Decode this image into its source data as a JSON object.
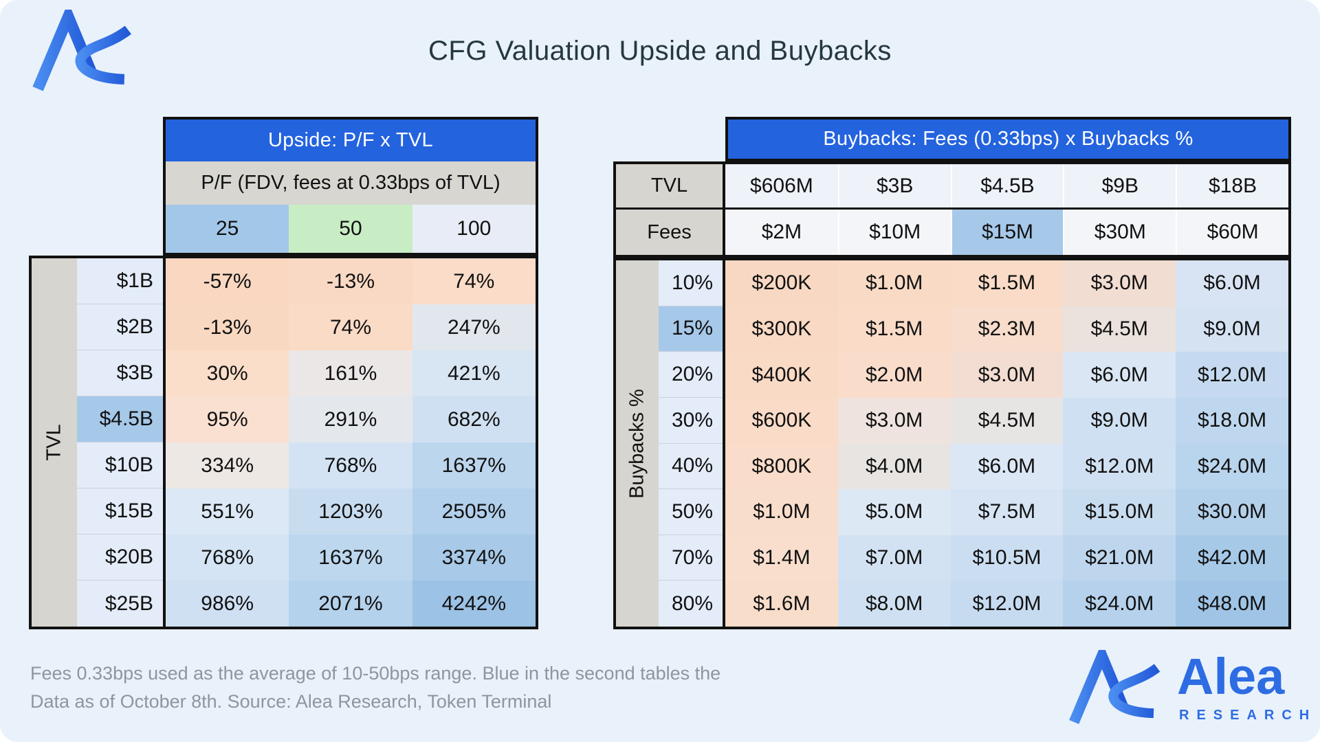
{
  "page": {
    "title": "CFG Valuation Upside and Buybacks",
    "background": "#e9f1fb",
    "footer_line1": "Fees 0.33bps used as the average of 10-50bps range. Blue in the second tables the",
    "footer_line2": "Data as of October 8th. Source: Alea Research, Token Terminal"
  },
  "branding": {
    "logo": "alea-logo",
    "wordmark": "Alea",
    "wordmark_sub": "RESEARCH",
    "brand_blue": "#2d6ce3"
  },
  "colors": {
    "header_blue": "#2463de",
    "highlight_blue": "#a6c8e9",
    "axis_gray": "#d6d5cf",
    "subtitle_gray": "#d7d6d1",
    "row_label_bg": "#e3ecf8",
    "border_black": "#111111",
    "title_color": "#25383d",
    "footer_gray": "#8e959e"
  },
  "chart_data": [
    {
      "type": "table",
      "title": "Upside: P/F x TVL",
      "subtitle": "P/F (FDV, fees at 0.33bps of TVL)",
      "row_axis": "TVL",
      "columns": [
        "25",
        "50",
        "100"
      ],
      "column_colors": [
        "#a3c7e9",
        "#c8edc5",
        "#e8ecf6"
      ],
      "row_labels": [
        "$1B",
        "$2B",
        "$3B",
        "$4.5B",
        "$10B",
        "$15B",
        "$20B",
        "$25B"
      ],
      "highlighted_row": "$4.5B",
      "cells": [
        [
          "-57%",
          "-13%",
          "74%"
        ],
        [
          "-13%",
          "74%",
          "247%"
        ],
        [
          "30%",
          "161%",
          "421%"
        ],
        [
          "95%",
          "291%",
          "682%"
        ],
        [
          "334%",
          "768%",
          "1637%"
        ],
        [
          "551%",
          "1203%",
          "2505%"
        ],
        [
          "768%",
          "1637%",
          "3374%"
        ],
        [
          "986%",
          "2071%",
          "4242%"
        ]
      ],
      "cell_colors": [
        [
          "#f9d7c1",
          "#f9d9c4",
          "#fadcc8"
        ],
        [
          "#f9d8c2",
          "#fadbc6",
          "#e2e7ee"
        ],
        [
          "#fadeca",
          "#ebe7e7",
          "#d8e5f3"
        ],
        [
          "#f9e0d1",
          "#e4e8ec",
          "#cfe0f2"
        ],
        [
          "#eee8e4",
          "#d4e3f4",
          "#bcd6ee"
        ],
        [
          "#dce8f5",
          "#c8dcf0",
          "#b2cfeb"
        ],
        [
          "#d5e4f4",
          "#bdd7ef",
          "#a8c9e8"
        ],
        [
          "#cfe0f3",
          "#b5d2ec",
          "#9cc2e5"
        ]
      ]
    },
    {
      "type": "table",
      "title": "Buybacks: Fees (0.33bps) x Buybacks %",
      "row_axis": "Buybacks %",
      "header_rows": [
        {
          "label": "TVL",
          "values": [
            "$606M",
            "$3B",
            "$4.5B",
            "$9B",
            "$18B"
          ],
          "bg": "#eef2f9",
          "highlight_index": -1
        },
        {
          "label": "Fees",
          "values": [
            "$2M",
            "$10M",
            "$15M",
            "$30M",
            "$60M"
          ],
          "bg": "#f3f5f9",
          "highlight_index": 2
        }
      ],
      "row_labels": [
        "10%",
        "15%",
        "20%",
        "30%",
        "40%",
        "50%",
        "70%",
        "80%"
      ],
      "highlighted_row": "15%",
      "cells": [
        [
          "$200K",
          "$1.0M",
          "$1.5M",
          "$3.0M",
          "$6.0M"
        ],
        [
          "$300K",
          "$1.5M",
          "$2.3M",
          "$4.5M",
          "$9.0M"
        ],
        [
          "$400K",
          "$2.0M",
          "$3.0M",
          "$6.0M",
          "$12.0M"
        ],
        [
          "$600K",
          "$3.0M",
          "$4.5M",
          "$9.0M",
          "$18.0M"
        ],
        [
          "$800K",
          "$4.0M",
          "$6.0M",
          "$12.0M",
          "$24.0M"
        ],
        [
          "$1.0M",
          "$5.0M",
          "$7.5M",
          "$15.0M",
          "$30.0M"
        ],
        [
          "$1.4M",
          "$7.0M",
          "$10.5M",
          "$21.0M",
          "$42.0M"
        ],
        [
          "$1.6M",
          "$8.0M",
          "$12.0M",
          "$24.0M",
          "$48.0M"
        ]
      ],
      "cell_colors": [
        [
          "#f8d8c2",
          "#f9dac5",
          "#f9dbc7",
          "#f2ddd2",
          "#d8e4f3"
        ],
        [
          "#f9d9c4",
          "#f9dbc7",
          "#f8ddcc",
          "#ebe2dd",
          "#d4e2f2"
        ],
        [
          "#f9dac5",
          "#f9dcca",
          "#f3ddd2",
          "#dae6f4",
          "#c5daf0"
        ],
        [
          "#f9dbc7",
          "#eee3de",
          "#e7e4e4",
          "#cfe0f2",
          "#bed7ee"
        ],
        [
          "#f9dcc9",
          "#e8e4e2",
          "#dbe7f4",
          "#cfe0f2",
          "#b9d4ed"
        ],
        [
          "#f9ddcb",
          "#dde8f5",
          "#d6e4f3",
          "#c8dcf0",
          "#b3d0eb"
        ],
        [
          "#f9decd",
          "#d3e2f3",
          "#cbdef1",
          "#bdd6ee",
          "#a7c9e8"
        ],
        [
          "#f8ddcb",
          "#cfe0f2",
          "#c6dbf0",
          "#b5d1ec",
          "#9fc4e6"
        ]
      ]
    }
  ]
}
